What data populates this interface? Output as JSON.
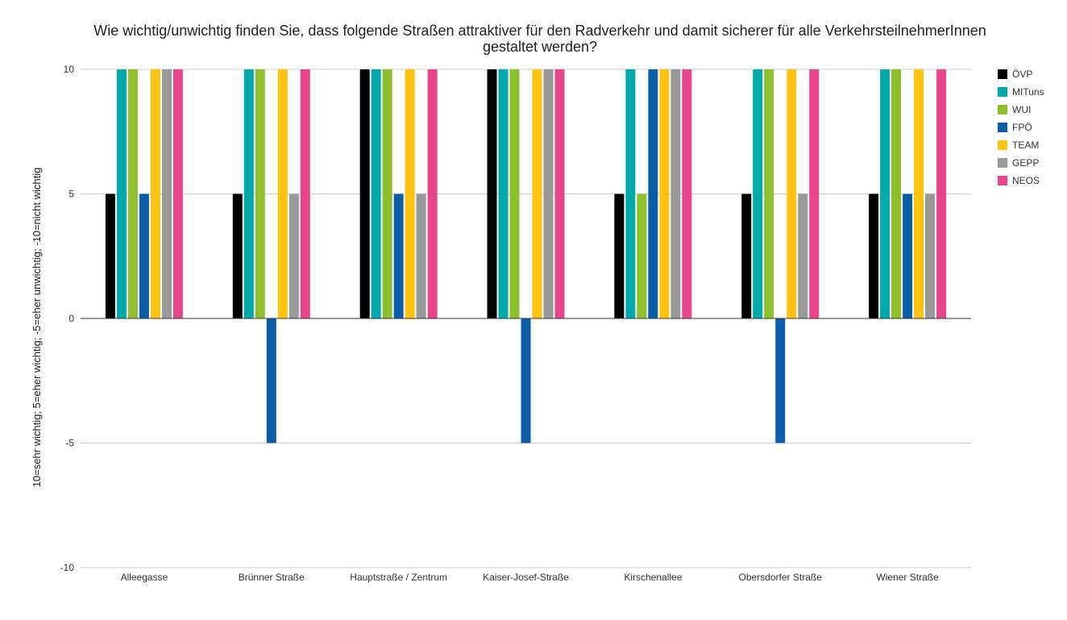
{
  "chart_data": {
    "type": "bar",
    "title_lines": [
      "Wie wichtig/unwichtig finden Sie, dass folgende Straßen attraktiver für den Radverkehr und damit sicherer für alle VerkehrsteilnehmerInnen",
      "gestaltet werden?"
    ],
    "xlabel": "",
    "ylabel": "10=sehr wichtig; 5=eher wichtig; -5=eher unwichtig; -10=nicht wichtig",
    "ylim": [
      -10,
      10
    ],
    "yticks": [
      10,
      5,
      0,
      -5,
      -10
    ],
    "grid": true,
    "legend_position": "right",
    "categories": [
      "Alleegasse",
      "Brünner Straße",
      "Hauptstraße / Zentrum",
      "Kaiser-Josef-Straße",
      "Kirschenallee",
      "Obersdorfer Straße",
      "Wiener Straße"
    ],
    "series": [
      {
        "name": "ÖVP",
        "color": "#000000",
        "values": [
          5,
          5,
          10,
          10,
          5,
          5,
          5
        ]
      },
      {
        "name": "MITuns",
        "color": "#00AAAA",
        "values": [
          10,
          10,
          10,
          10,
          10,
          10,
          10
        ]
      },
      {
        "name": "WUI",
        "color": "#8DBF2C",
        "values": [
          10,
          10,
          10,
          10,
          5,
          10,
          10
        ]
      },
      {
        "name": "FPÖ",
        "color": "#0B5DA8",
        "values": [
          5,
          -5,
          5,
          -5,
          10,
          -5,
          5
        ]
      },
      {
        "name": "TEAM",
        "color": "#FFC20E",
        "values": [
          10,
          10,
          10,
          10,
          10,
          10,
          10
        ]
      },
      {
        "name": "GEPP",
        "color": "#999999",
        "values": [
          10,
          5,
          5,
          10,
          10,
          5,
          5
        ]
      },
      {
        "name": "NEOS",
        "color": "#E8458B",
        "values": [
          10,
          10,
          10,
          10,
          10,
          10,
          10
        ]
      }
    ]
  }
}
